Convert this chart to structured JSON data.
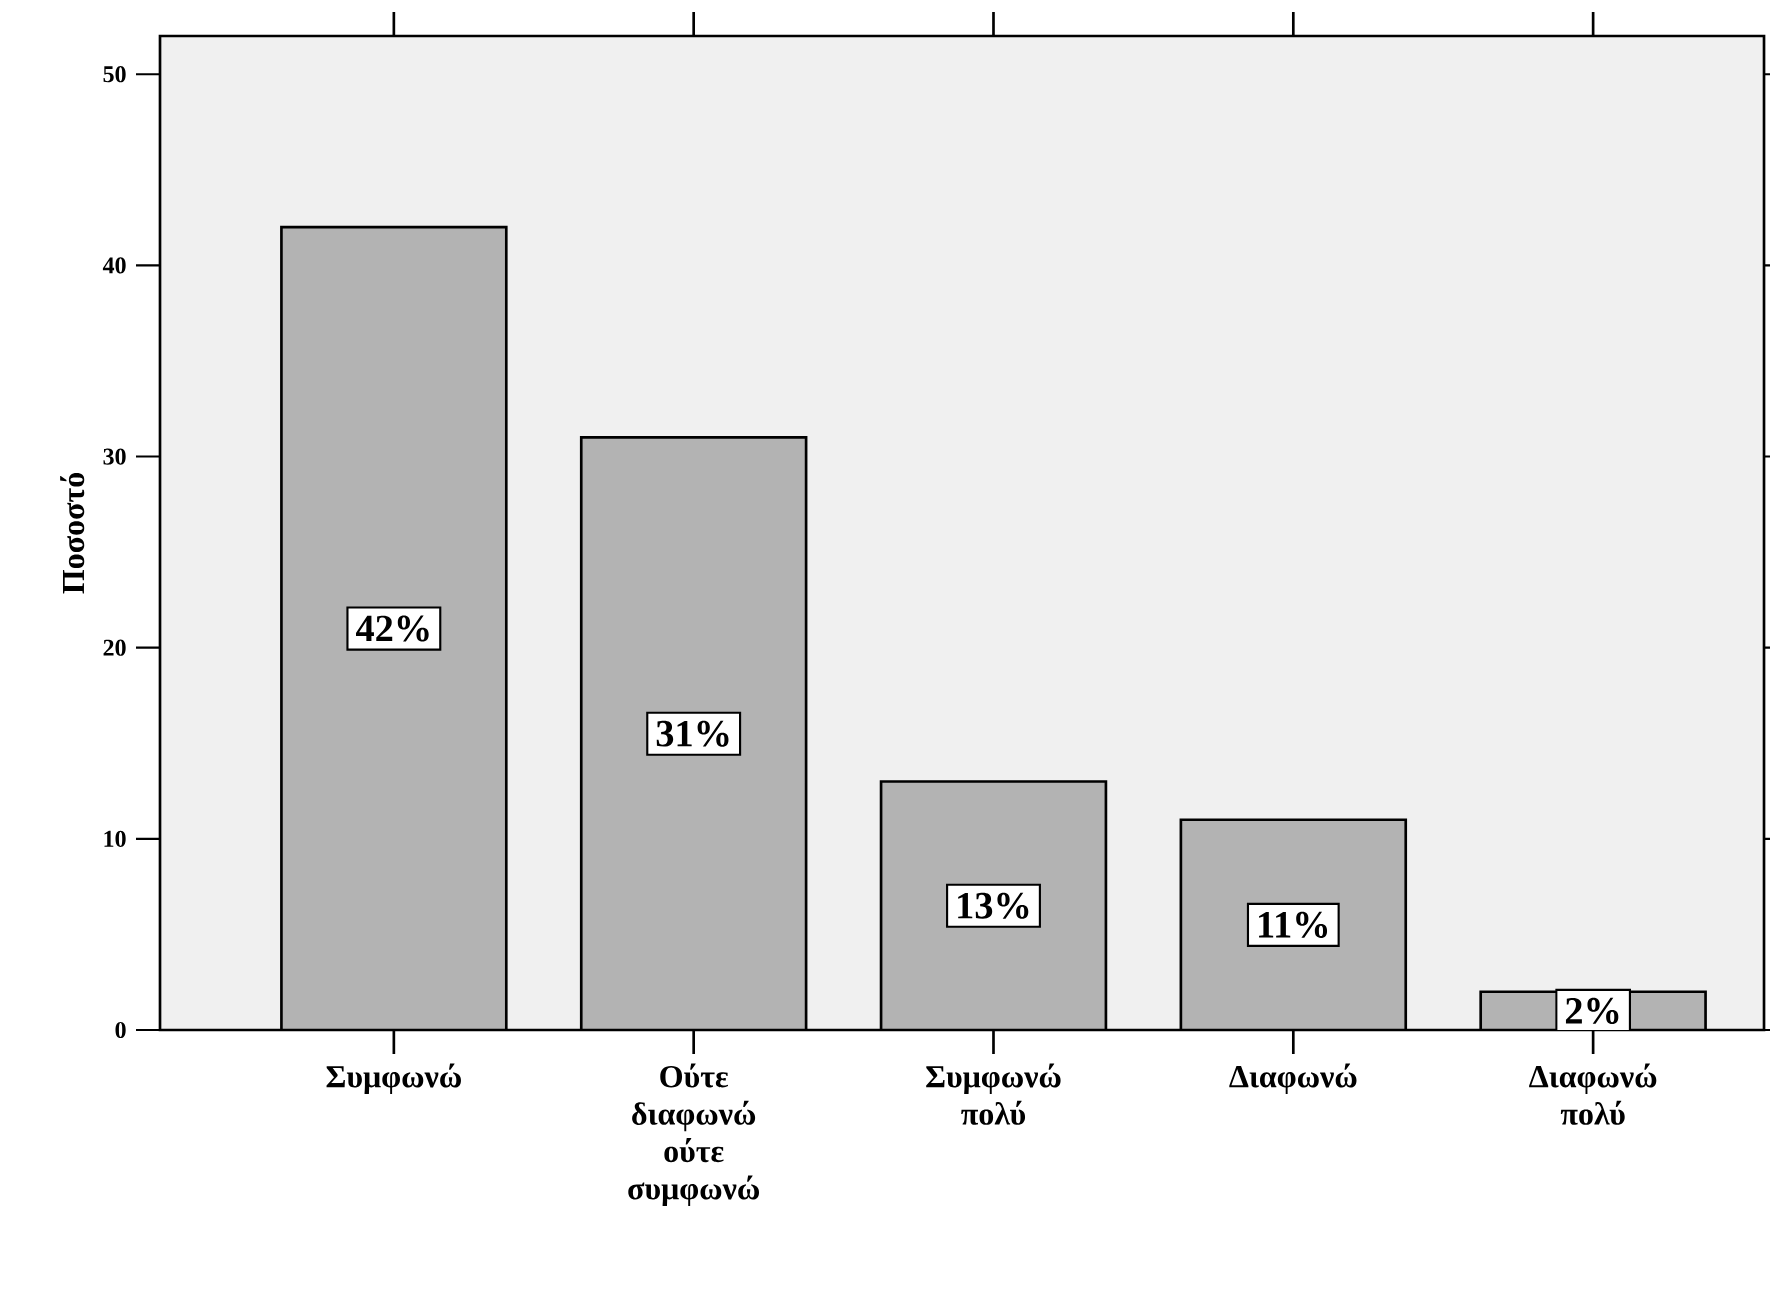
{
  "chart_data": {
    "type": "bar",
    "ylabel": "Ποσοστό",
    "categories": [
      "Συμφωνώ",
      "Ούτε διαφωνώ ούτε συμφωνώ",
      "Συμφωνώ πολύ",
      "Διαφωνώ",
      "Διαφωνώ πολύ"
    ],
    "values": [
      42,
      31,
      13,
      11,
      2
    ],
    "value_labels": [
      "42%",
      "31%",
      "13%",
      "11%",
      "2%"
    ],
    "color": "#b3b3b3",
    "ylim": [
      0,
      52
    ],
    "yticks": [
      0,
      10,
      20,
      30,
      40,
      50
    ]
  }
}
